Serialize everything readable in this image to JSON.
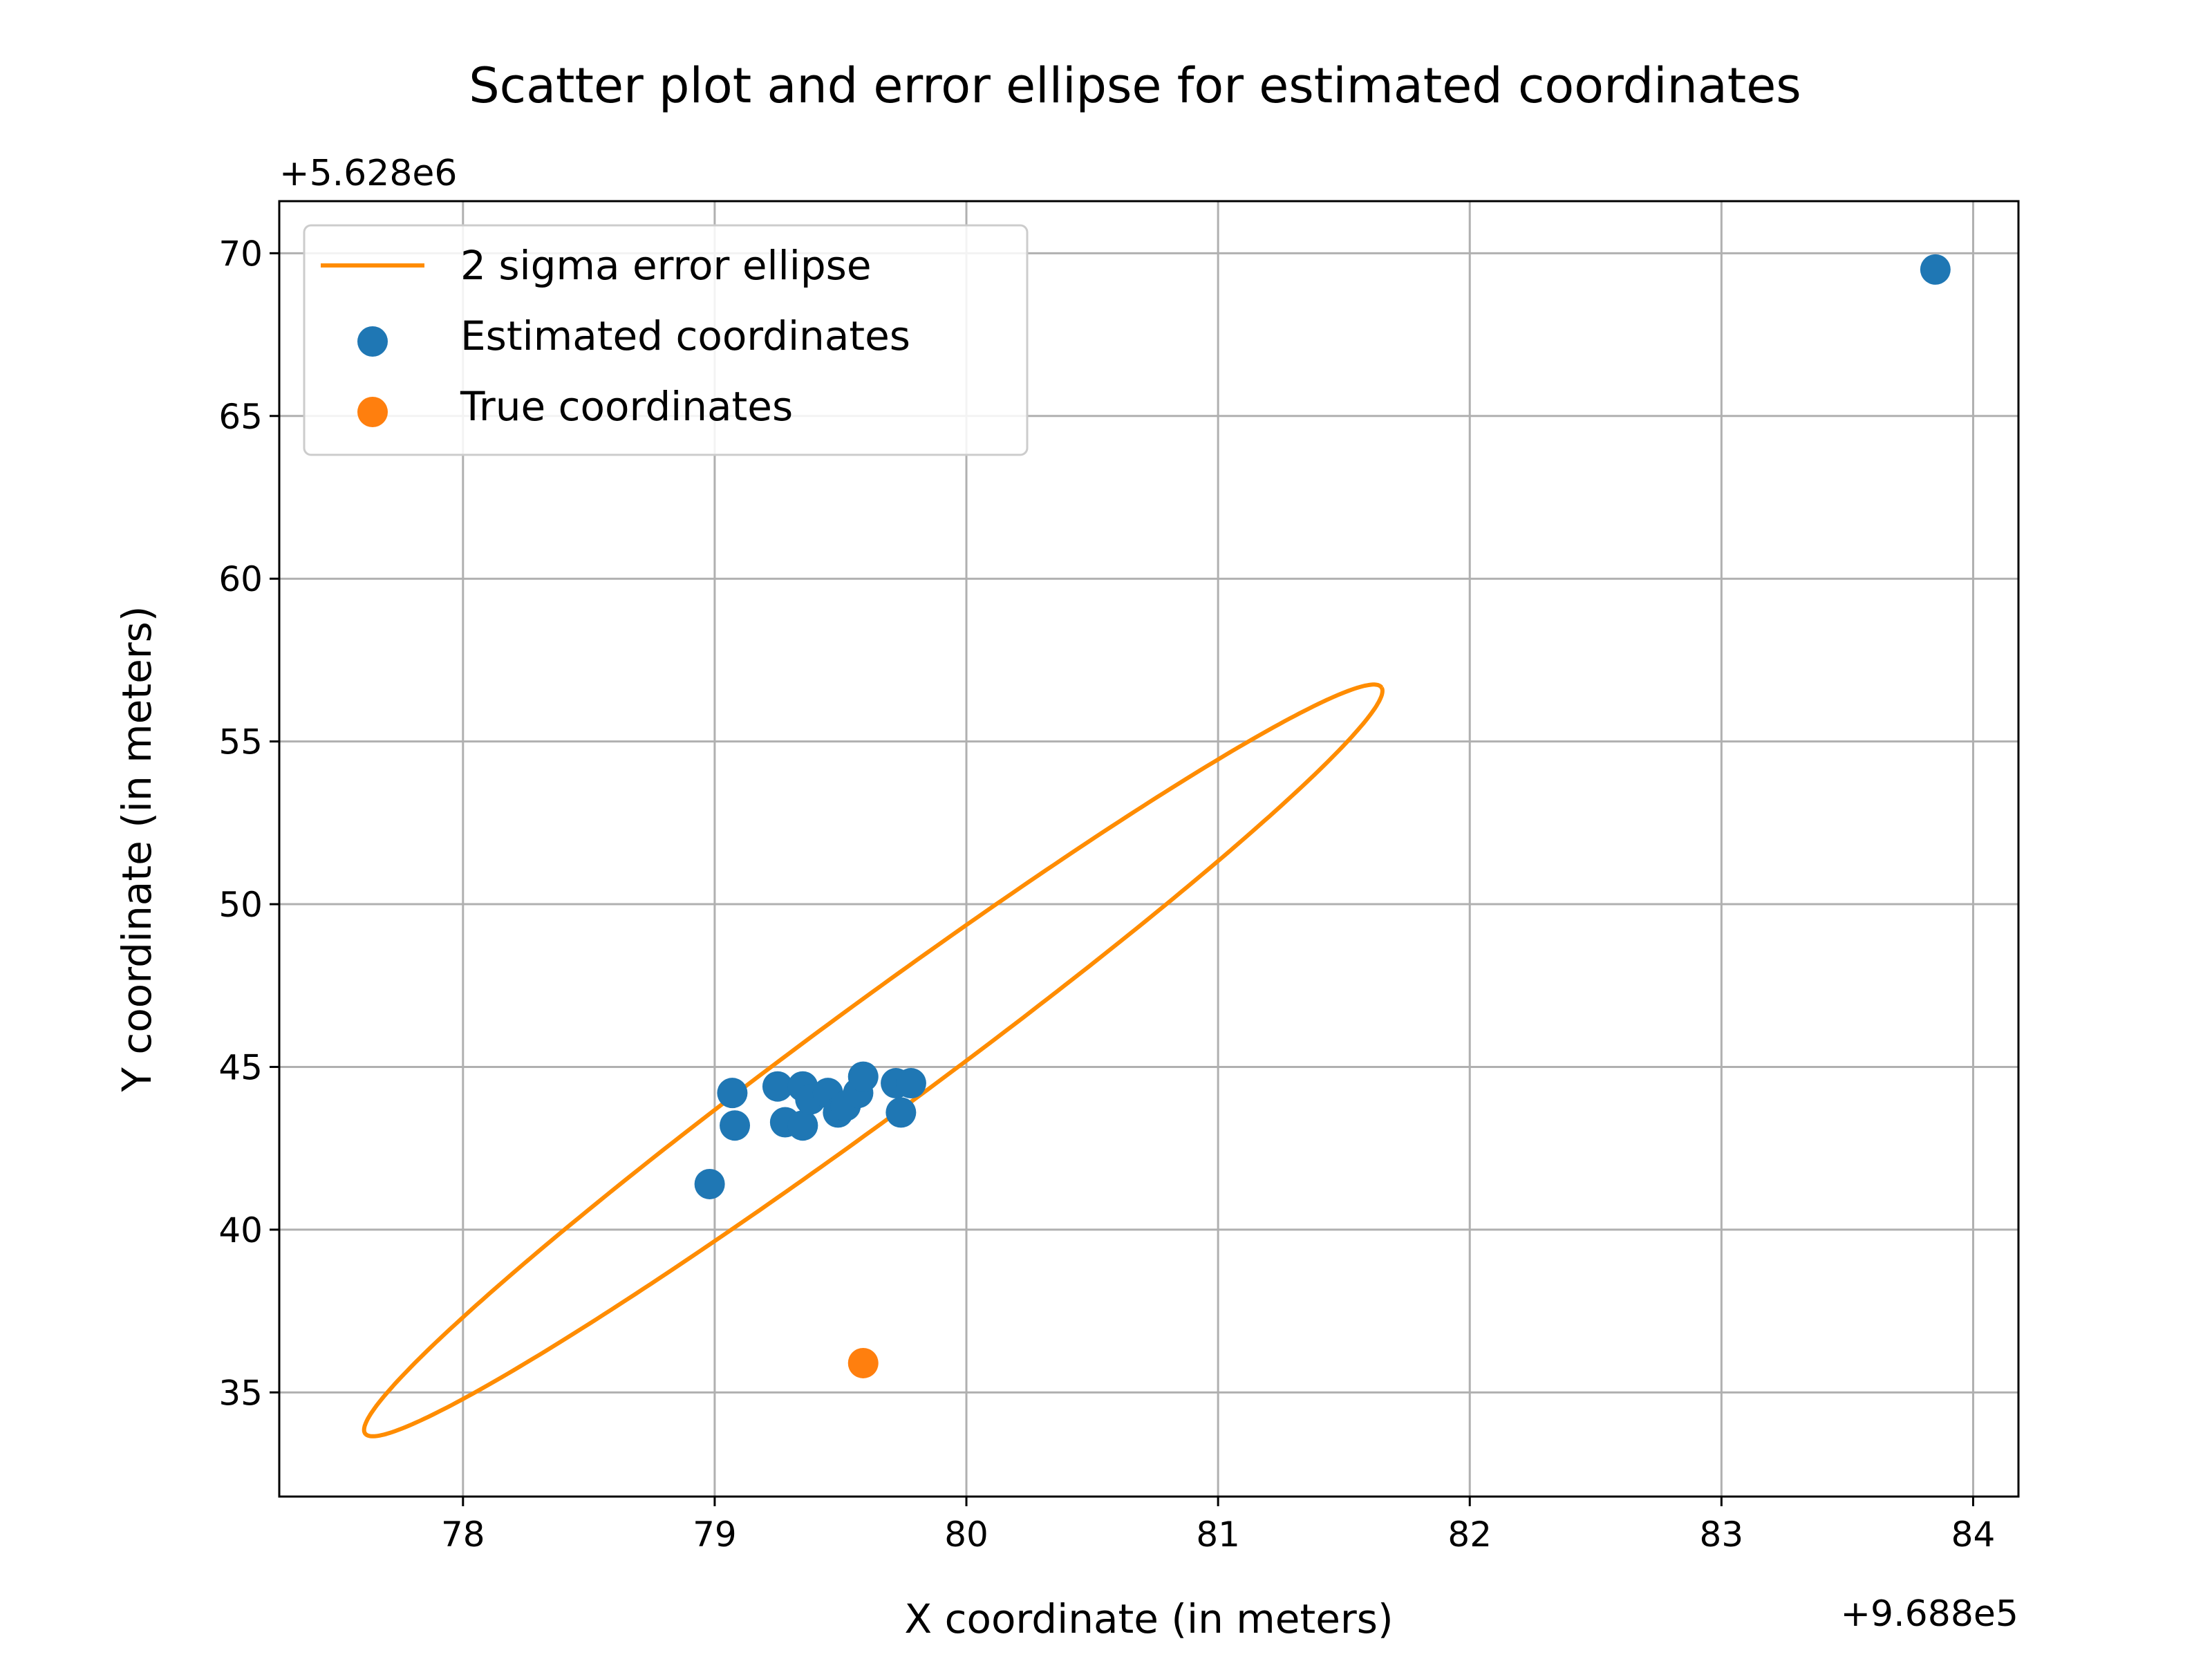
{
  "chart_data": {
    "type": "scatter",
    "title": "Scatter plot and error ellipse for estimated coordinates",
    "xlabel": "X coordinate (in meters)",
    "ylabel": "Y coordinate (in meters)",
    "x_offset_label": "+9.688e5",
    "y_offset_label": "+5.628e6",
    "xlim": [
      77.27,
      84.18
    ],
    "ylim": [
      31.8,
      71.6
    ],
    "x_ticks": [
      78,
      79,
      80,
      81,
      82,
      83,
      84
    ],
    "y_ticks": [
      35,
      40,
      45,
      50,
      55,
      60,
      65,
      70
    ],
    "grid": true,
    "legend_position": "upper-left",
    "series": [
      {
        "name": "2 sigma error ellipse",
        "kind": "line",
        "color": "#ff8c00",
        "ellipse": {
          "center": [
            79.63,
            45.2
          ],
          "semi_major_dx": 2.02,
          "semi_major_dy": 11.45,
          "semi_minor_dx": -0.11,
          "semi_minor_dy": 1.5
        }
      },
      {
        "name": "Estimated coordinates",
        "kind": "scatter",
        "color": "#1f77b4",
        "points": [
          [
            78.98,
            41.4
          ],
          [
            79.08,
            43.2
          ],
          [
            79.07,
            44.2
          ],
          [
            79.25,
            44.4
          ],
          [
            79.28,
            43.3
          ],
          [
            79.35,
            43.2
          ],
          [
            79.35,
            44.4
          ],
          [
            79.38,
            44.0
          ],
          [
            79.45,
            44.2
          ],
          [
            79.49,
            43.6
          ],
          [
            79.52,
            43.8
          ],
          [
            79.57,
            44.2
          ],
          [
            79.59,
            44.7
          ],
          [
            79.72,
            44.5
          ],
          [
            79.74,
            43.6
          ],
          [
            79.78,
            44.5
          ],
          [
            83.85,
            69.5
          ]
        ]
      },
      {
        "name": "True coordinates",
        "kind": "scatter",
        "color": "#ff7f0e",
        "points": [
          [
            79.59,
            35.9
          ]
        ]
      }
    ]
  }
}
